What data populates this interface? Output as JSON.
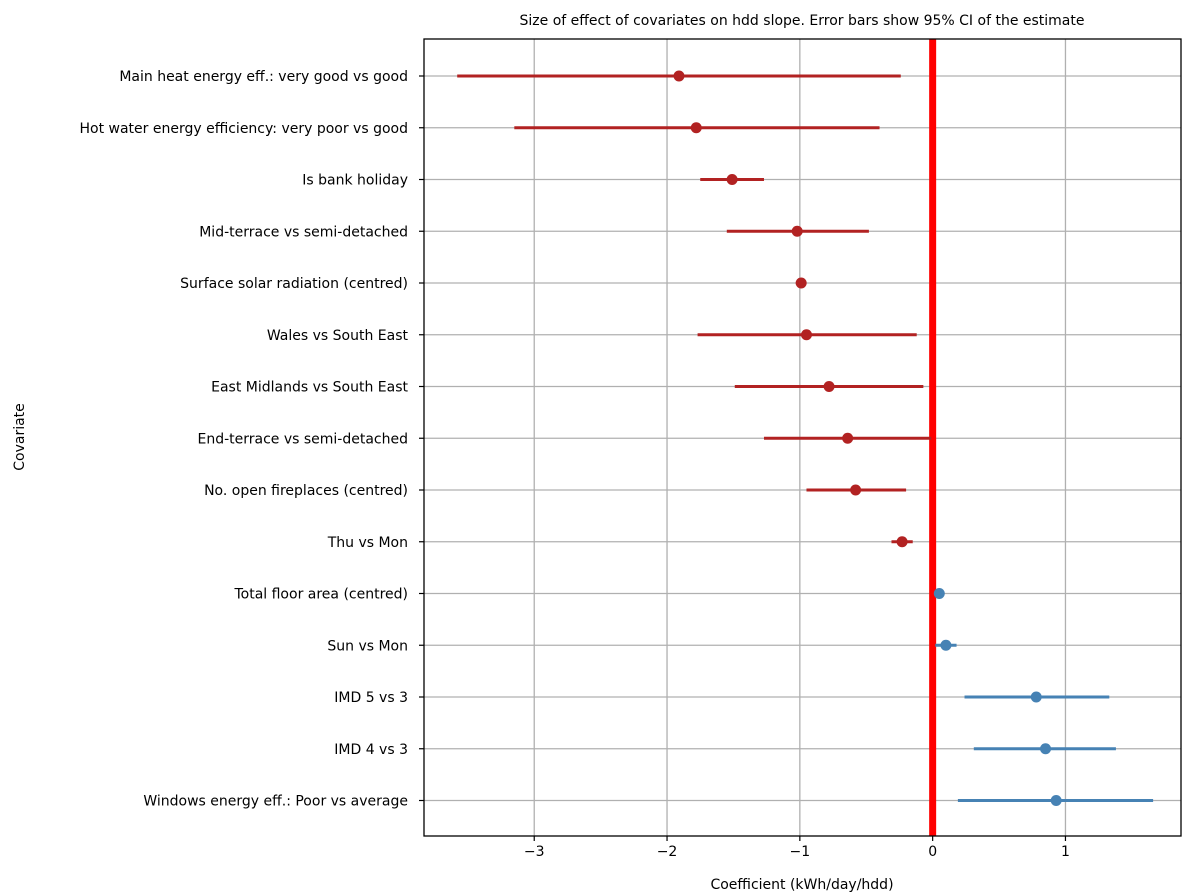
{
  "chart_data": {
    "type": "scatter",
    "title": "Size of effect of covariates on hdd slope. Error bars show 95% CI of the estimate",
    "xlabel": "Coefficient (kWh/day/hdd)",
    "ylabel": "Covariate",
    "xlim": [
      -3.83,
      1.87
    ],
    "xticks": [
      -3,
      -2,
      -1,
      0,
      1
    ],
    "xtick_labels": [
      "−3",
      "−2",
      "−1",
      "0",
      "1"
    ],
    "grid": true,
    "reference_line": {
      "x": 0,
      "color": "#ff0000"
    },
    "colors": {
      "negative": "#b22222",
      "positive": "#4682b4",
      "grid": "#b0b0b0"
    },
    "series": [
      {
        "label": "Main heat energy eff.: very good vs good",
        "estimate": -1.91,
        "ci_low": -3.58,
        "ci_high": -0.24
      },
      {
        "label": "Hot water energy efficiency: very poor vs good",
        "estimate": -1.78,
        "ci_low": -3.15,
        "ci_high": -0.4
      },
      {
        "label": "Is bank holiday",
        "estimate": -1.51,
        "ci_low": -1.75,
        "ci_high": -1.27
      },
      {
        "label": "Mid-terrace vs semi-detached",
        "estimate": -1.02,
        "ci_low": -1.55,
        "ci_high": -0.48
      },
      {
        "label": "Surface solar radiation (centred)",
        "estimate": -0.99,
        "ci_low": -1.03,
        "ci_high": -0.95
      },
      {
        "label": "Wales vs South East",
        "estimate": -0.95,
        "ci_low": -1.77,
        "ci_high": -0.12
      },
      {
        "label": "East Midlands vs South East",
        "estimate": -0.78,
        "ci_low": -1.49,
        "ci_high": -0.07
      },
      {
        "label": "End-terrace vs semi-detached",
        "estimate": -0.64,
        "ci_low": -1.27,
        "ci_high": -0.01
      },
      {
        "label": "No. open fireplaces (centred)",
        "estimate": -0.58,
        "ci_low": -0.95,
        "ci_high": -0.2
      },
      {
        "label": "Thu vs Mon",
        "estimate": -0.23,
        "ci_low": -0.31,
        "ci_high": -0.15
      },
      {
        "label": "Total floor area (centred)",
        "estimate": 0.05,
        "ci_low": 0.04,
        "ci_high": 0.06
      },
      {
        "label": "Sun vs Mon",
        "estimate": 0.1,
        "ci_low": 0.02,
        "ci_high": 0.18
      },
      {
        "label": "IMD 5 vs 3",
        "estimate": 0.78,
        "ci_low": 0.24,
        "ci_high": 1.33
      },
      {
        "label": "IMD 4 vs 3",
        "estimate": 0.85,
        "ci_low": 0.31,
        "ci_high": 1.38
      },
      {
        "label": "Windows energy eff.: Poor vs average",
        "estimate": 0.93,
        "ci_low": 0.19,
        "ci_high": 1.66
      }
    ]
  }
}
